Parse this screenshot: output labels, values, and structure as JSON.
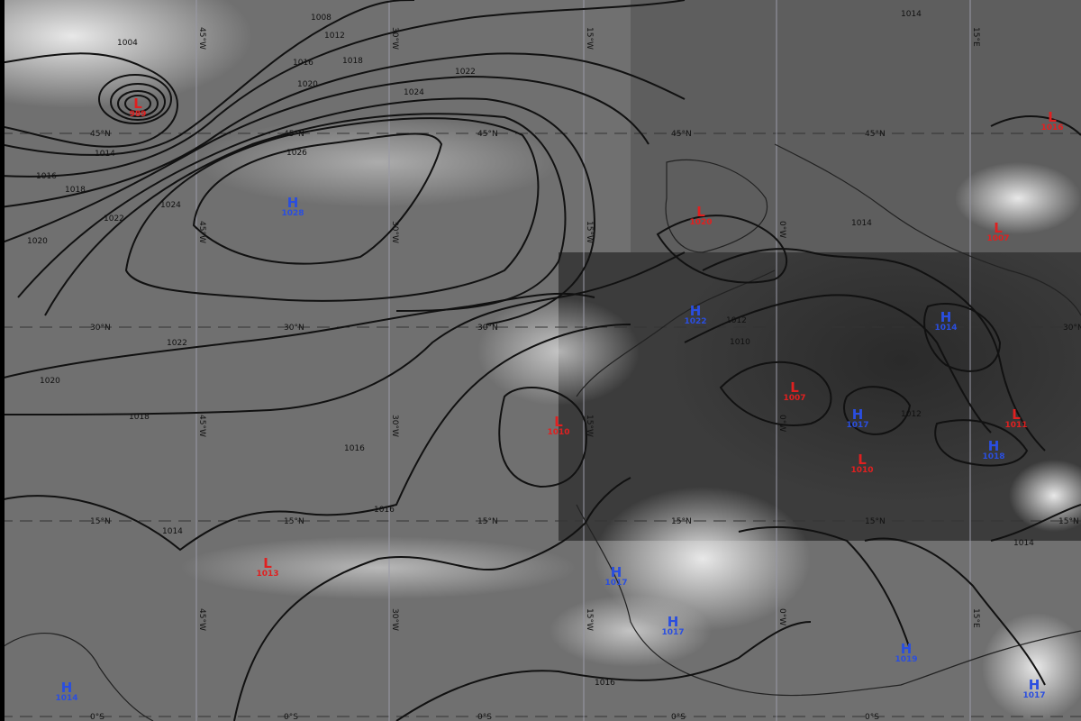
{
  "map": {
    "type": "satellite-infrared-with-isobars",
    "colors": {
      "low": "#e02020",
      "high": "#2a4ee0",
      "isobar": "#111111"
    },
    "latitude_labels": [
      "45°N",
      "30°N",
      "15°N",
      "0°S"
    ],
    "longitude_labels": [
      "45°W",
      "30°W",
      "15°W",
      "0°W",
      "15°E"
    ],
    "isobar_labels": [
      "1004",
      "1008",
      "1012",
      "1014",
      "1016",
      "1018",
      "1020",
      "1022",
      "1024",
      "1026",
      "1014",
      "1016",
      "1018",
      "1020",
      "1022",
      "1024",
      "1020",
      "1022",
      "1018",
      "1016",
      "1014",
      "1012",
      "1010",
      "1014",
      "1012",
      "1016",
      "1014",
      "1016"
    ],
    "centers": [
      {
        "type": "L",
        "value": "989"
      },
      {
        "type": "H",
        "value": "1028"
      },
      {
        "type": "L",
        "value": "1020"
      },
      {
        "type": "L",
        "value": "1007"
      },
      {
        "type": "L",
        "value": "1016"
      },
      {
        "type": "H",
        "value": "1022"
      },
      {
        "type": "H",
        "value": "1014"
      },
      {
        "type": "L",
        "value": "1007"
      },
      {
        "type": "H",
        "value": "1017"
      },
      {
        "type": "L",
        "value": "1011"
      },
      {
        "type": "H",
        "value": "1018"
      },
      {
        "type": "L",
        "value": "1010"
      },
      {
        "type": "L",
        "value": "1010"
      },
      {
        "type": "L",
        "value": "1013"
      },
      {
        "type": "H",
        "value": "1017"
      },
      {
        "type": "H",
        "value": "1017"
      },
      {
        "type": "H",
        "value": "1019"
      },
      {
        "type": "H",
        "value": "1017"
      },
      {
        "type": "H",
        "value": "1014"
      }
    ]
  }
}
